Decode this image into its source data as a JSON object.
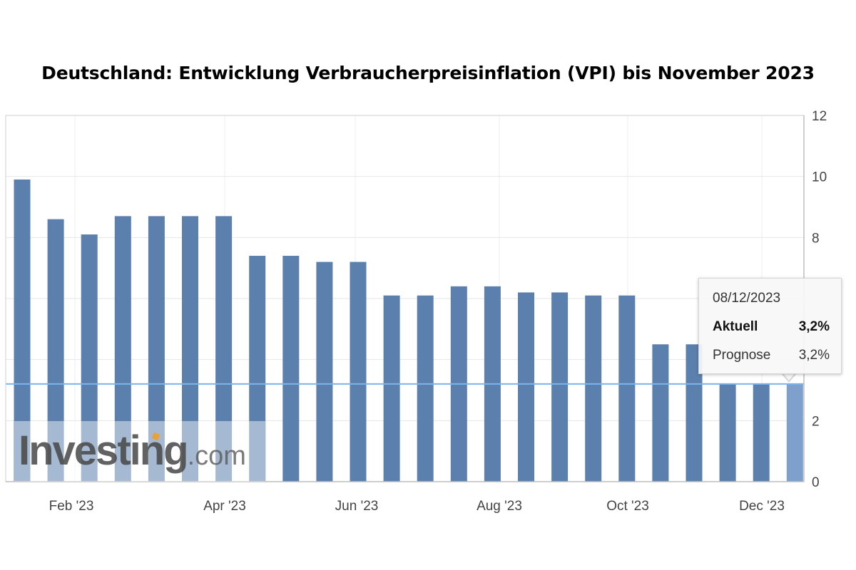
{
  "chart_data": {
    "type": "bar",
    "title": "Deutschland: Entwicklung Verbraucherpreisinflation (VPI) bis November 2023",
    "x_tick_labels": [
      "Feb '23",
      "Apr '23",
      "Jun '23",
      "Aug '23",
      "Oct '23",
      "Dec '23"
    ],
    "y_ticks": [
      0,
      2,
      4,
      6,
      8,
      10,
      12
    ],
    "y_tick_labels": [
      "0",
      "2",
      "",
      "",
      "8",
      "10",
      "12"
    ],
    "ylim": [
      0,
      12
    ],
    "y_axis_side": "right",
    "grid": true,
    "series": [
      {
        "values": [
          9.9,
          8.6,
          8.1,
          8.7,
          8.7,
          8.7,
          8.7,
          7.4,
          7.4,
          7.2,
          7.2,
          6.1,
          6.1,
          6.4,
          6.4,
          6.2,
          6.2,
          6.1,
          6.1,
          4.5,
          4.5,
          3.2,
          3.2,
          3.2
        ],
        "color": "#5b80ad",
        "highlight_last_color": "#7fa0cc"
      }
    ],
    "reference_line": {
      "value": 3.2,
      "color": "#7cb5ec"
    }
  },
  "tooltip": {
    "date": "08/12/2023",
    "actual_label": "Aktuell",
    "actual_value": "3,2%",
    "forecast_label": "Prognose",
    "forecast_value": "3,2%"
  },
  "watermark": {
    "brand": "Investing",
    "suffix": ".com"
  }
}
